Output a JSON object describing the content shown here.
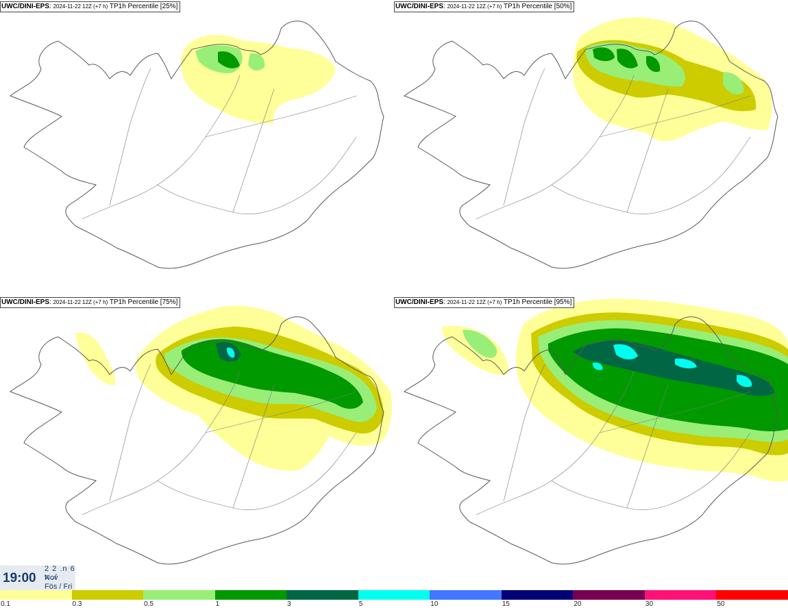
{
  "panels": [
    {
      "model": "UWC/DINI-EPS",
      "run": "2024-11-22 12Z (+7 h)",
      "field": "TP1h Percentile [25%]"
    },
    {
      "model": "UWC/DINI-EPS",
      "run": "2024-11-22 12Z (+7 h)",
      "field": "TP1h Percentile [50%]"
    },
    {
      "model": "UWC/DINI-EPS",
      "run": "2024-11-22 12Z (+7 h)",
      "field": "TP1h Percentile [75%]"
    },
    {
      "model": "UWC/DINI-EPS",
      "run": "2024-11-22 12Z (+7 h)",
      "field": "TP1h Percentile [95%]"
    }
  ],
  "clock": {
    "time": "19:00",
    "date_line": "2 2 .n 6 v ./",
    "month": "Nov",
    "weekday": "Fös / Fri"
  },
  "legend": {
    "ticks": [
      "0.1",
      "0.3",
      "0.5",
      "1",
      "3",
      "5",
      "10",
      "15",
      "20",
      "30",
      "50"
    ],
    "colors": [
      "#ffff99",
      "#cccc00",
      "#99ee77",
      "#009900",
      "#006644",
      "#00ffee",
      "#4477ff",
      "#000077",
      "#770055",
      "#ff1177",
      "#ff0000"
    ]
  }
}
